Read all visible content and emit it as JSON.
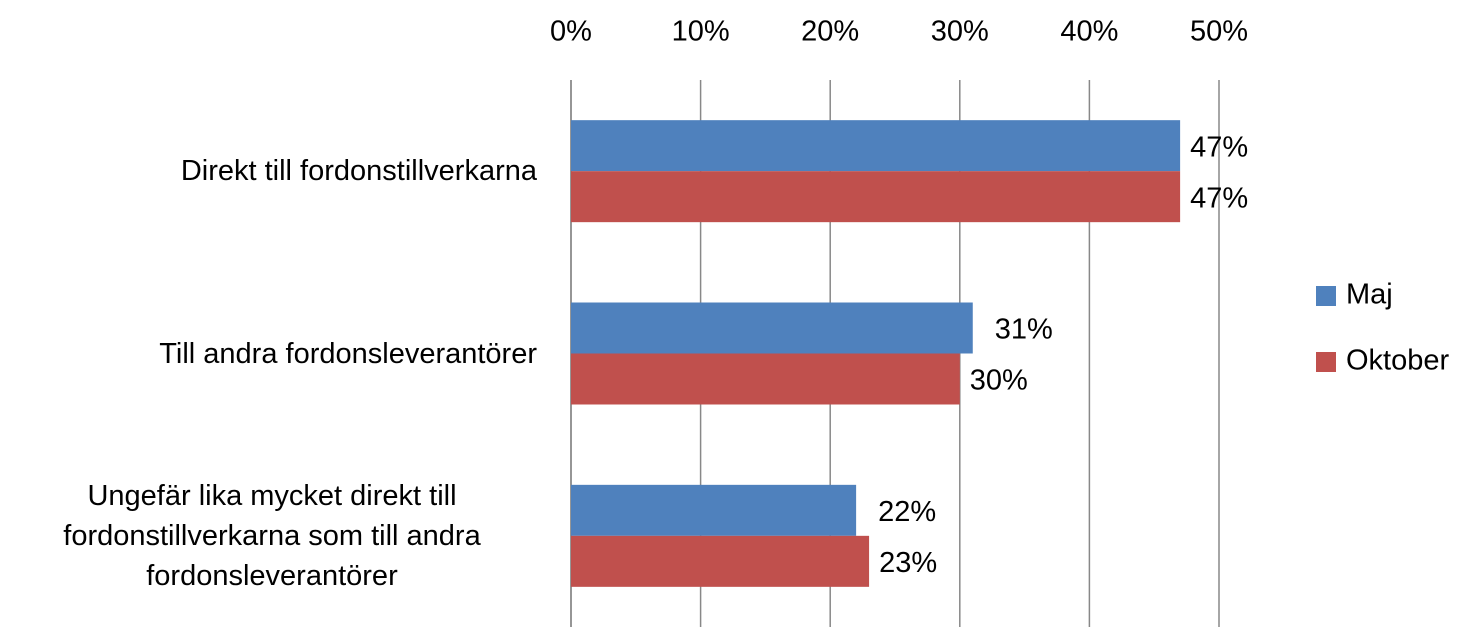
{
  "chart_data": {
    "type": "barh",
    "categories": [
      "Direkt till fordonstillverkarna",
      "Till andra fordonsleverantörer",
      "Ungefär lika mycket direkt till fordonstillverkarna som till andra fordonsleverantörer"
    ],
    "series": [
      {
        "name": "Maj",
        "color": "#4f81bd",
        "values": [
          47,
          31,
          22
        ],
        "value_labels": [
          "47%",
          "31%",
          "22%"
        ]
      },
      {
        "name": "Oktober",
        "color": "#c0504d",
        "values": [
          47,
          30,
          23
        ],
        "value_labels": [
          "47%",
          "30%",
          "23%"
        ]
      }
    ],
    "xlim": [
      0,
      50
    ],
    "xticks": [
      {
        "value": 0,
        "label": "0%"
      },
      {
        "value": 10,
        "label": "10%"
      },
      {
        "value": 20,
        "label": "20%"
      },
      {
        "value": 30,
        "label": "30%"
      },
      {
        "value": 40,
        "label": "40%"
      },
      {
        "value": 50,
        "label": "50%"
      }
    ],
    "grid": true,
    "legend": "right"
  }
}
